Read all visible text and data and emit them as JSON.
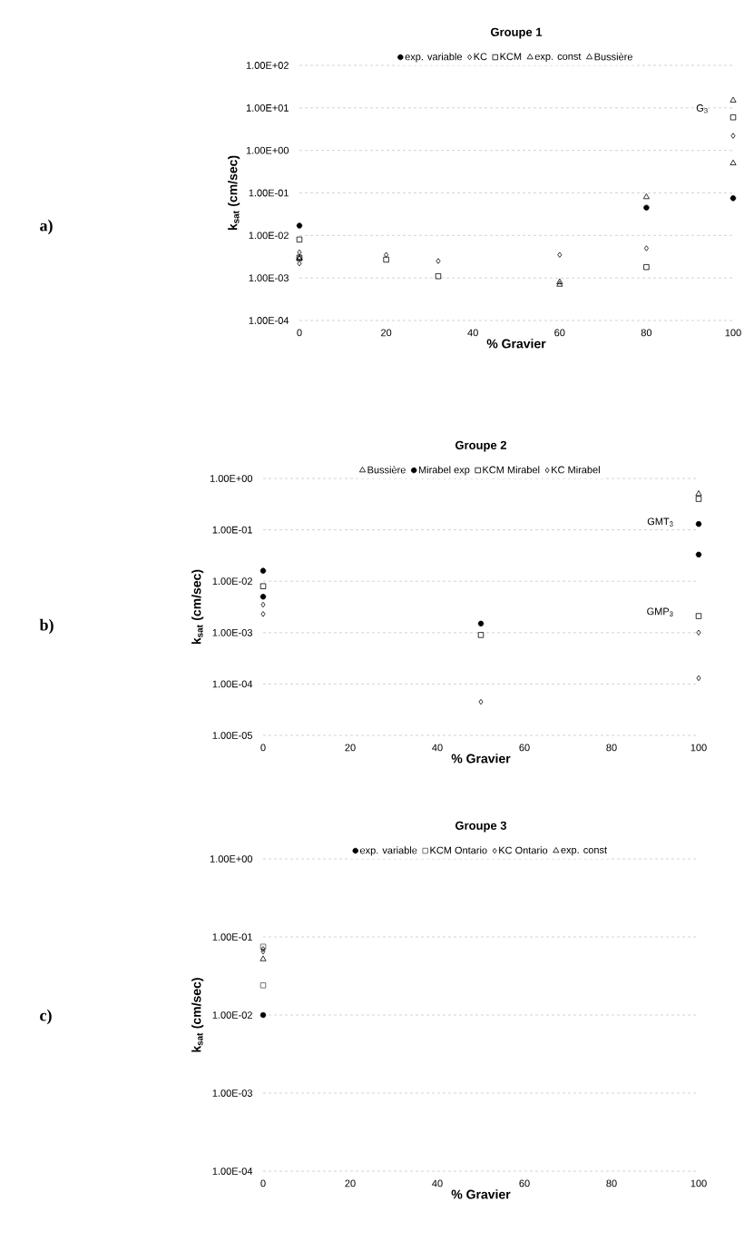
{
  "chart_data": [
    {
      "type": "scatter",
      "title": "Groupe 1",
      "xlabel": "% Gravier",
      "ylabel": "k$_{sat}$ (cm/sec)",
      "log": "y",
      "grid": "y",
      "legend": "top",
      "xlim": [
        0,
        100
      ],
      "xticks": [
        0,
        20,
        40,
        60,
        80,
        100
      ],
      "ylim": [
        0.0001,
        100
      ],
      "yticks": [
        {
          "value": 0.0001,
          "label": "1.00E-04"
        },
        {
          "value": 0.001,
          "label": "1.00E-03"
        },
        {
          "value": 0.01,
          "label": "1.00E-02"
        },
        {
          "value": 0.1,
          "label": "1.00E-01"
        },
        {
          "value": 1,
          "label": "1.00E+00"
        },
        {
          "value": 10,
          "label": "1.00E+01"
        },
        {
          "value": 100,
          "label": "1.00E+02"
        }
      ],
      "annotations": [
        "a)",
        "G$_{3}$"
      ],
      "series": [
        {
          "name": "exp. variable",
          "color": "#000000",
          "marker": "circle",
          "x": [
            0,
            80,
            100
          ],
          "values": [
            0.017,
            0.045,
            0.075
          ]
        },
        {
          "name": "KC",
          "color": "#000000",
          "marker": "diamond",
          "x": [
            0,
            0,
            20,
            32,
            60,
            80,
            100
          ],
          "values": [
            0.004,
            0.0022,
            0.0035,
            0.0025,
            0.0035,
            0.005,
            2.2
          ]
        },
        {
          "name": "KCM",
          "color": "#000000",
          "marker": "square",
          "x": [
            0,
            0,
            20,
            32,
            80,
            100
          ],
          "values": [
            0.008,
            0.003,
            0.0027,
            0.0011,
            0.0018,
            6
          ]
        },
        {
          "name": "exp. const",
          "color": "#000000",
          "marker": "triangle",
          "x": [
            0,
            60,
            80,
            100
          ],
          "values": [
            0.003,
            0.0008,
            0.08,
            15
          ]
        },
        {
          "name": "Bussière",
          "color": "#000000",
          "marker": "triangle",
          "x": [
            0,
            60,
            100
          ],
          "values": [
            0.0028,
            0.0007,
            0.5
          ]
        }
      ]
    },
    {
      "type": "scatter",
      "title": "Groupe 2",
      "xlabel": "% Gravier",
      "ylabel": "k$_{sat}$ (cm/sec)",
      "log": "y",
      "grid": "y",
      "legend": "top",
      "xlim": [
        0,
        100
      ],
      "xticks": [
        0,
        20,
        40,
        60,
        80,
        100
      ],
      "ylim": [
        1e-05,
        1
      ],
      "yticks": [
        {
          "value": 1e-05,
          "label": "1.00E-05"
        },
        {
          "value": 0.0001,
          "label": "1.00E-04"
        },
        {
          "value": 0.001,
          "label": "1.00E-03"
        },
        {
          "value": 0.01,
          "label": "1.00E-02"
        },
        {
          "value": 0.1,
          "label": "1.00E-01"
        },
        {
          "value": 1,
          "label": "1.00E+00"
        }
      ],
      "annotations": [
        "b)",
        "GMT$_{3}$",
        "GMP$_{3}$"
      ],
      "series": [
        {
          "name": "Bussière",
          "color": "#000000",
          "marker": "triangle",
          "x": [
            100
          ],
          "values": [
            0.5
          ]
        },
        {
          "name": "Mirabel exp",
          "color": "#000000",
          "marker": "circle",
          "x": [
            0,
            0,
            50,
            100,
            100
          ],
          "values": [
            0.016,
            0.005,
            0.0015,
            0.13,
            0.033
          ]
        },
        {
          "name": "KCM Mirabel",
          "color": "#000000",
          "marker": "square",
          "x": [
            0,
            50,
            100,
            100
          ],
          "values": [
            0.008,
            0.0009,
            0.4,
            0.0021
          ]
        },
        {
          "name": "KC Mirabel",
          "color": "#000000",
          "marker": "diamond",
          "x": [
            0,
            0,
            50,
            100,
            100
          ],
          "values": [
            0.0035,
            0.0023,
            4.5e-05,
            0.001,
            0.00013
          ]
        }
      ]
    },
    {
      "type": "scatter",
      "title": "Groupe 3",
      "xlabel": "% Gravier",
      "ylabel": "k$_{sat}$ (cm/sec)",
      "log": "y",
      "grid": "y",
      "legend": "top",
      "xlim": [
        0,
        100
      ],
      "xticks": [
        0,
        20,
        40,
        60,
        80,
        100
      ],
      "ylim": [
        0.0001,
        1
      ],
      "yticks": [
        {
          "value": 0.0001,
          "label": "1.00E-04"
        },
        {
          "value": 0.001,
          "label": "1.00E-03"
        },
        {
          "value": 0.01,
          "label": "1.00E-02"
        },
        {
          "value": 0.1,
          "label": "1.00E-01"
        },
        {
          "value": 1,
          "label": "1.00E+00"
        }
      ],
      "annotations": [
        "c)"
      ],
      "series": [
        {
          "name": "exp. variable",
          "color": "#000000",
          "marker": "circle",
          "x": [
            0
          ],
          "values": [
            0.01
          ]
        },
        {
          "name": "KCM Ontario",
          "color": "#555555",
          "marker": "square",
          "x": [
            0,
            0
          ],
          "values": [
            0.075,
            0.024
          ]
        },
        {
          "name": "KC Ontario",
          "color": "#000000",
          "marker": "diamond",
          "x": [
            0,
            0
          ],
          "values": [
            0.07,
            0.065
          ]
        },
        {
          "name": "exp. const",
          "color": "#000000",
          "marker": "triangle",
          "x": [
            0
          ],
          "values": [
            0.052
          ]
        }
      ]
    }
  ]
}
